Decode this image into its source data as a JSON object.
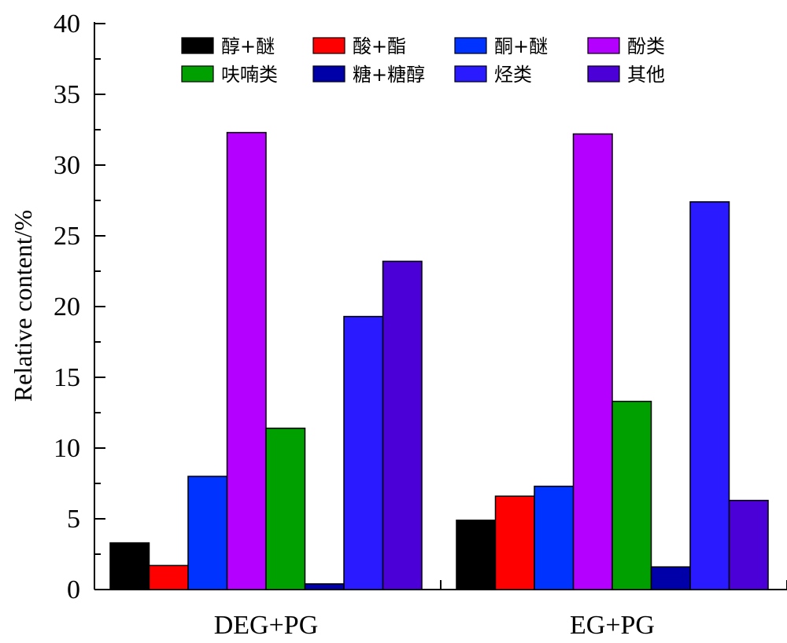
{
  "chart_data": {
    "type": "bar",
    "categories": [
      "DEG+PG",
      "EG+PG"
    ],
    "series": [
      {
        "name": "醇+醚",
        "color": "#000000",
        "values": [
          3.3,
          4.9
        ]
      },
      {
        "name": "酸+酯",
        "color": "#ff0000",
        "values": [
          1.7,
          6.6
        ]
      },
      {
        "name": "酮+醚",
        "color": "#0033ff",
        "values": [
          8.0,
          7.3
        ]
      },
      {
        "name": "酚类",
        "color": "#b400ff",
        "values": [
          32.3,
          32.2
        ]
      },
      {
        "name": "呋喃类",
        "color": "#00a000",
        "values": [
          11.4,
          13.3
        ]
      },
      {
        "name": "糖+糖醇",
        "color": "#0000a8",
        "values": [
          0.4,
          1.6
        ]
      },
      {
        "name": "烃类",
        "color": "#2a1aff",
        "values": [
          19.3,
          27.4
        ]
      },
      {
        "name": "其他",
        "color": "#4b00d8",
        "values": [
          23.2,
          6.3
        ]
      }
    ],
    "xlabel": "",
    "ylabel": "Relative content/%",
    "ylim": [
      0,
      40
    ],
    "yticks": [
      "0",
      "5",
      "10",
      "15",
      "20",
      "25",
      "30",
      "35",
      "40"
    ],
    "grid": false,
    "legend_position": "top"
  }
}
